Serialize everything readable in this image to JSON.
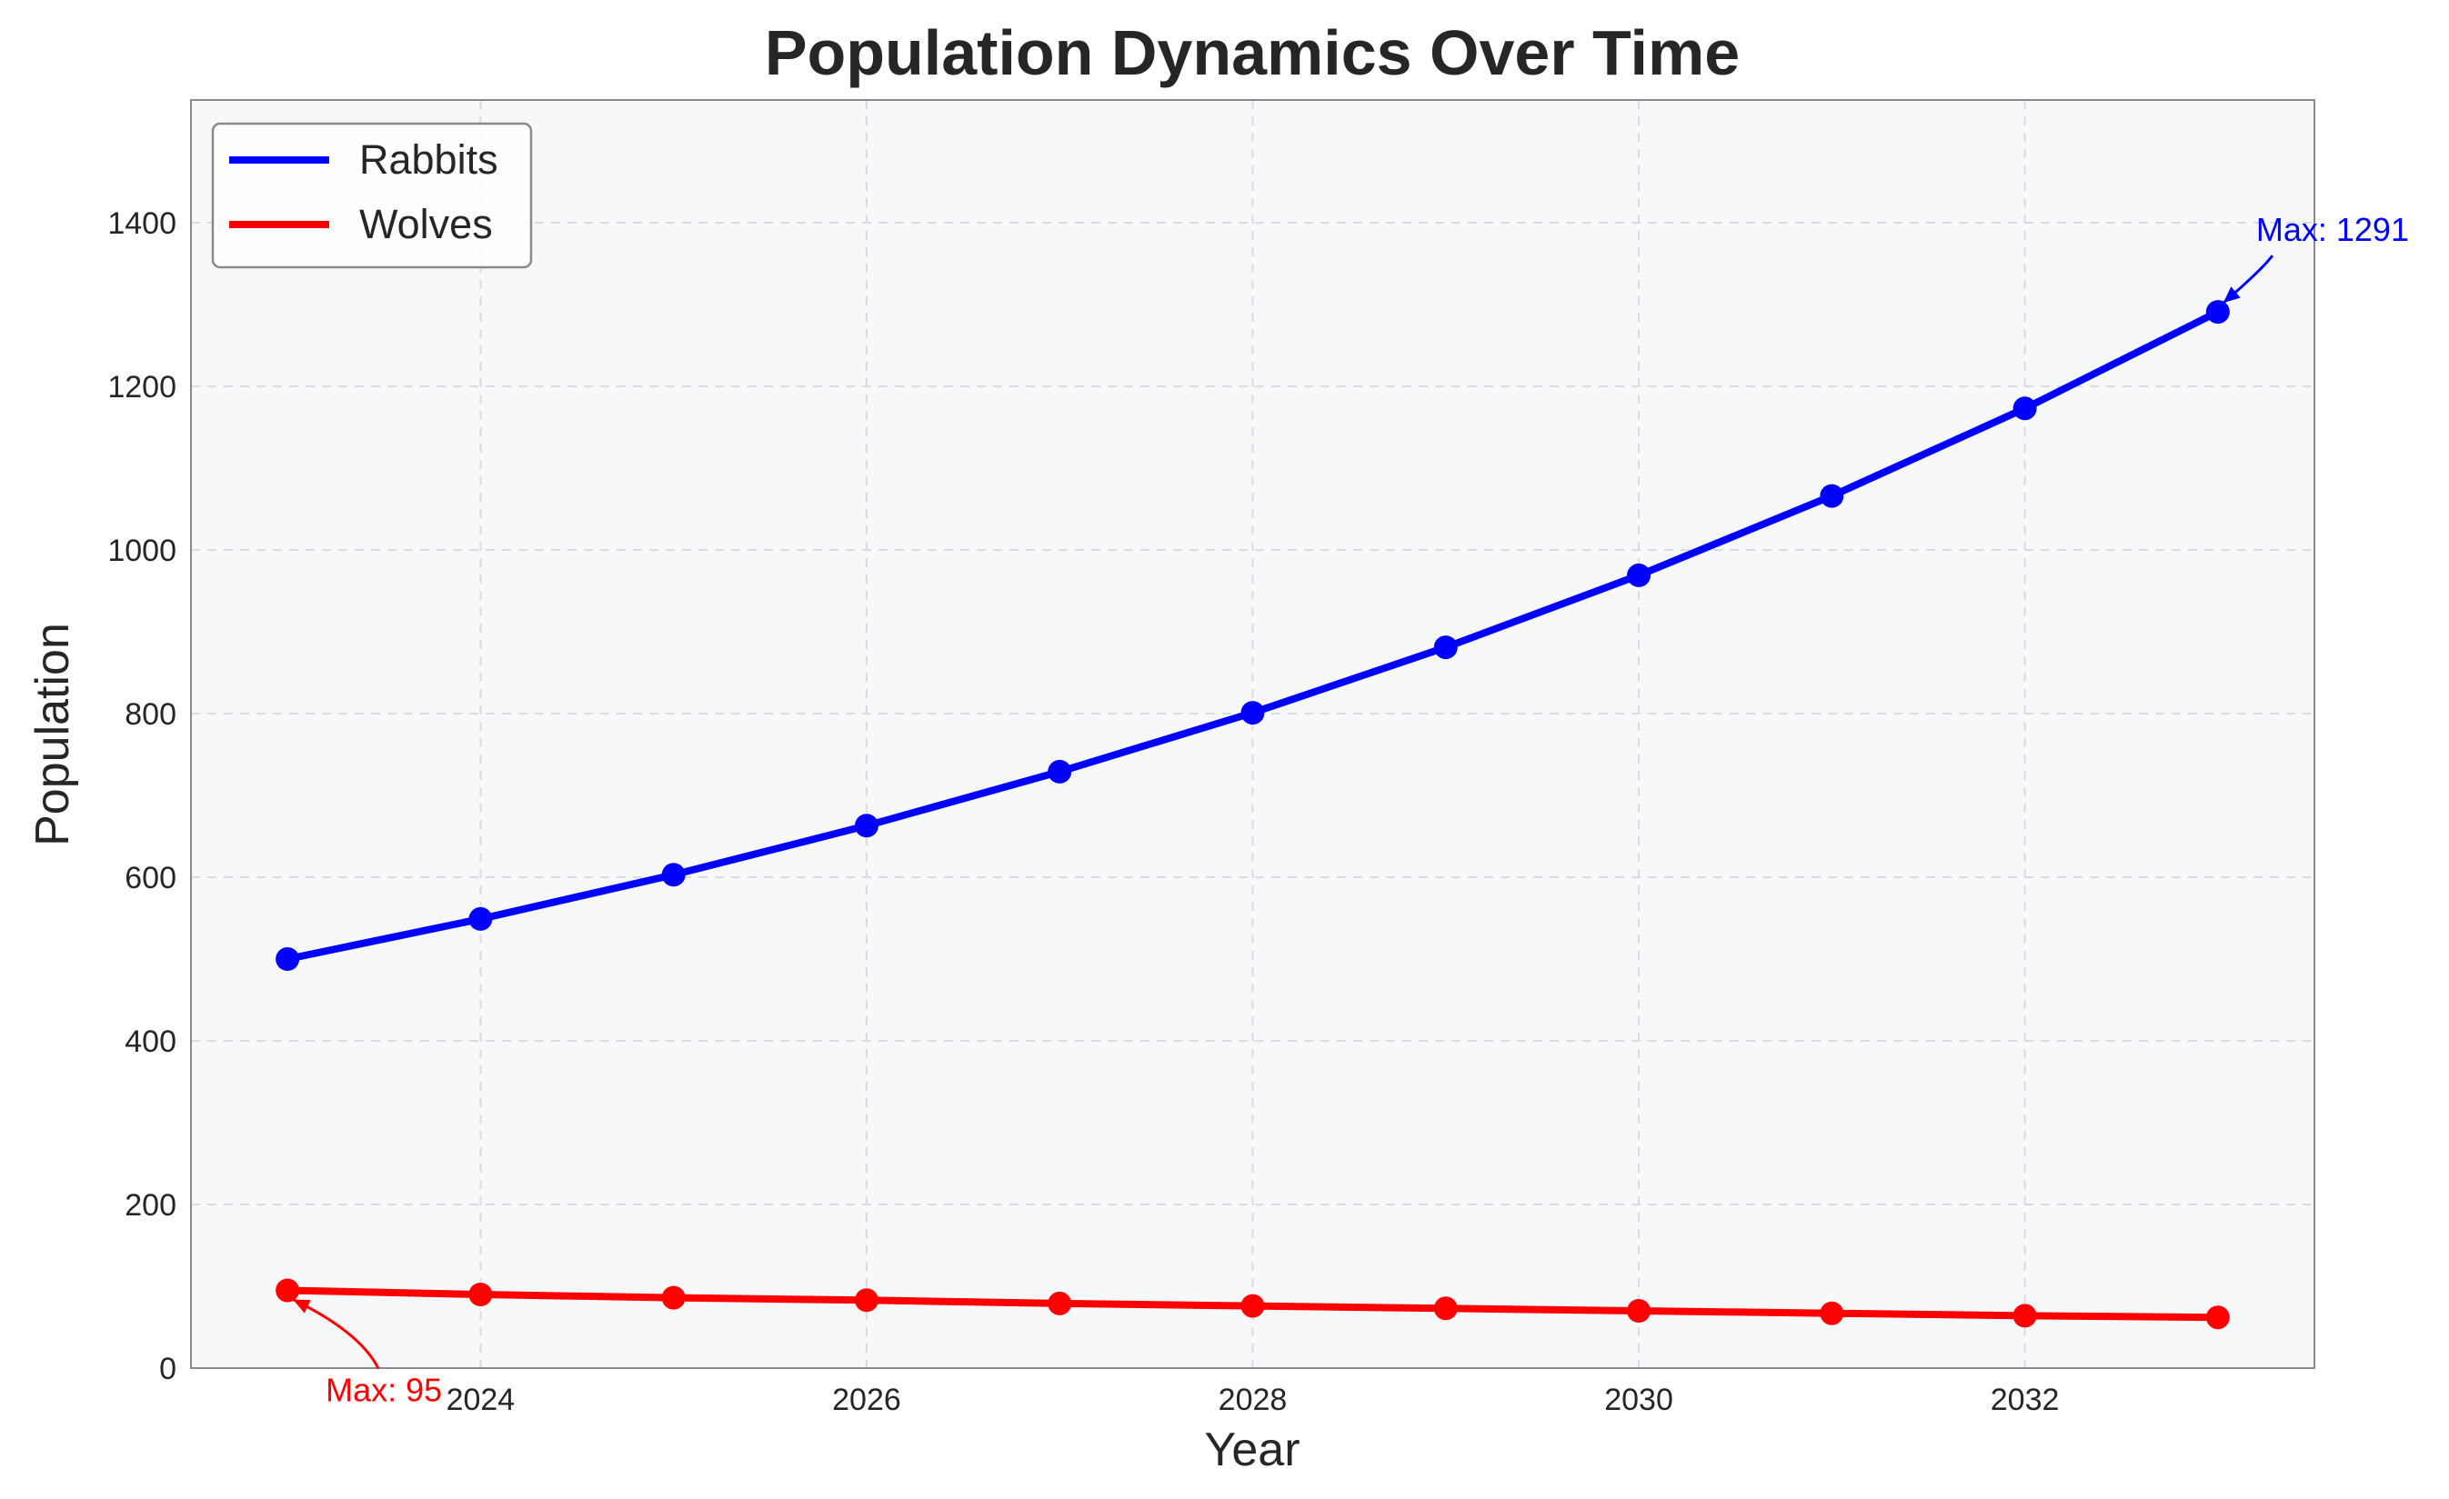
{
  "chart_data": {
    "type": "line",
    "title": "Population Dynamics Over Time",
    "xlabel": "Year",
    "ylabel": "Population",
    "x": [
      2023,
      2024,
      2025,
      2026,
      2027,
      2028,
      2029,
      2030,
      2031,
      2032,
      2033
    ],
    "xlim": [
      2022.5,
      2033.5
    ],
    "ylim": [
      0,
      1550
    ],
    "xticks": [
      2024,
      2026,
      2028,
      2030,
      2032
    ],
    "yticks": [
      0,
      200,
      400,
      600,
      800,
      1000,
      1200,
      1400
    ],
    "grid": true,
    "legend_position": "upper left",
    "background": "#f7f8fa",
    "series": [
      {
        "name": "Rabbits",
        "color": "#0000ff",
        "values": [
          500,
          549,
          603,
          663,
          729,
          801,
          881,
          969,
          1066,
          1173,
          1291
        ],
        "annotation": "Max: 1291"
      },
      {
        "name": "Wolves",
        "color": "#ff0000",
        "values": [
          95,
          90,
          86,
          83,
          79,
          76,
          73,
          70,
          67,
          64,
          62
        ],
        "annotation": "Max: 95"
      }
    ]
  }
}
